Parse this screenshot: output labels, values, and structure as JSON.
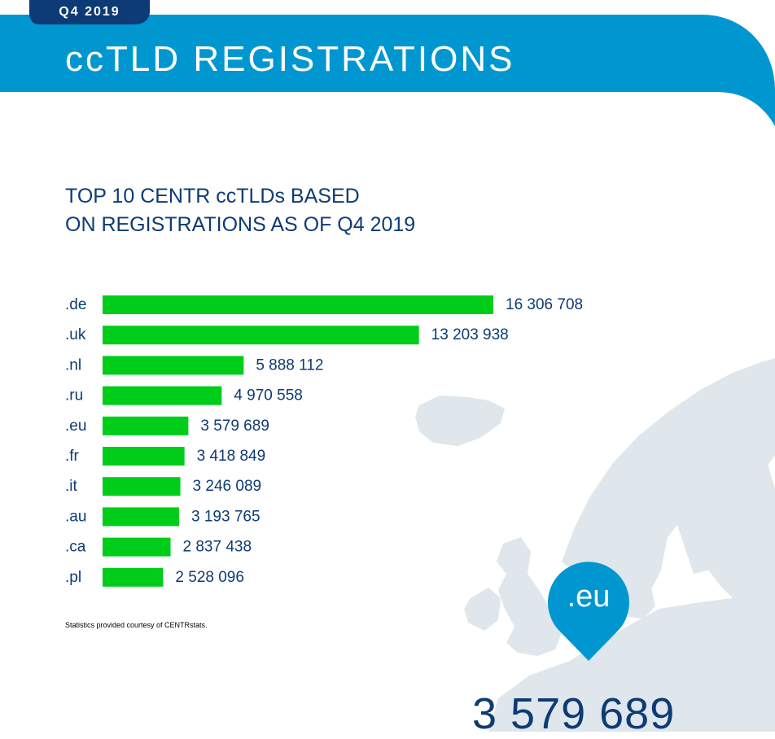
{
  "header": {
    "tab_label": "Q4 2019",
    "title": "ccTLD REGISTRATIONS"
  },
  "colors": {
    "brand_blue": "#0097d0",
    "dark_navy": "#0d3b75",
    "bar_green": "#00cc1a",
    "map_grey": "#dfe6ec"
  },
  "chart_data": {
    "type": "bar",
    "orientation": "horizontal",
    "title_lines": [
      "TOP 10 CENTR ccTLDs BASED",
      "ON REGISTRATIONS AS OF Q4 2019"
    ],
    "categories": [
      ".de",
      ".uk",
      ".nl",
      ".ru",
      ".eu",
      ".fr",
      ".it",
      ".au",
      ".ca",
      ".pl"
    ],
    "values": [
      16306708,
      13203938,
      5888112,
      4970558,
      3579689,
      3418849,
      3246089,
      3193765,
      2837438,
      2528096
    ],
    "value_labels": [
      "16 306 708",
      "13 203 938",
      "5 888 112",
      "4 970 558",
      "3 579 689",
      "3 418 849",
      "3 246 089",
      "3 193 765",
      "2 837 438",
      "2 528 096"
    ],
    "xlabel": "",
    "ylabel": "",
    "grid": false,
    "legend": false
  },
  "footnote": "Statistics provided courtesy of CENTRstats.",
  "highlight": {
    "pin_label": ".eu",
    "value": "3 579 689"
  }
}
